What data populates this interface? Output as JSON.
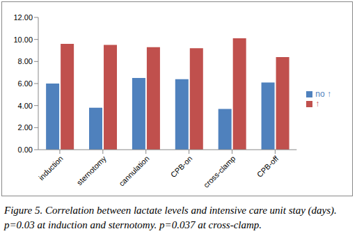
{
  "chart_data": {
    "type": "bar",
    "caption": "Figure 5. Correlation between lactate levels and intensive care unit stay (days). p=0.03 at induction and sternotomy. p=0.037 at cross-clamp.",
    "categories": [
      "induction",
      "sternotomy",
      "cannulation",
      "CPB-on",
      "cross-clamp",
      "CPB-off"
    ],
    "series": [
      {
        "name": "no ↑",
        "color": "#4f81bd",
        "values": [
          6.0,
          3.8,
          6.5,
          6.4,
          3.7,
          6.1
        ]
      },
      {
        "name": "↑",
        "color": "#c0504d",
        "values": [
          9.6,
          9.5,
          9.3,
          9.2,
          10.1,
          8.4
        ]
      }
    ],
    "ylim": [
      0,
      12
    ],
    "yticks": [
      {
        "value": 0,
        "label": "0.00"
      },
      {
        "value": 2,
        "label": "2.00"
      },
      {
        "value": 4,
        "label": "4.00"
      },
      {
        "value": 6,
        "label": "6.00"
      },
      {
        "value": 8,
        "label": "8.00"
      },
      {
        "value": 10,
        "label": "10.00"
      },
      {
        "value": 12,
        "label": "12.00"
      }
    ],
    "grid": false,
    "legend": "right"
  }
}
